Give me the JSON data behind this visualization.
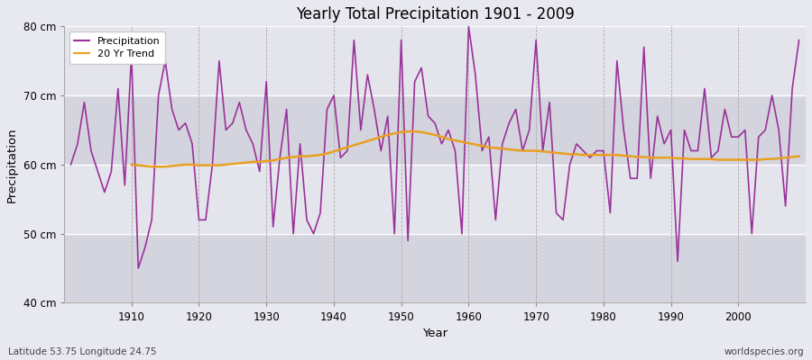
{
  "title": "Yearly Total Precipitation 1901 - 2009",
  "xlabel": "Year",
  "ylabel": "Precipitation",
  "bottom_left_label": "Latitude 53.75 Longitude 24.75",
  "bottom_right_label": "worldspecies.org",
  "precip_color": "#993399",
  "trend_color": "#e8a020",
  "background_color": "#e8e8f0",
  "inner_bg_color": "#dcdce8",
  "band_color_light": "#e4e4ec",
  "band_color_dark": "#d4d4de",
  "ylim": [
    40,
    80
  ],
  "yticks": [
    40,
    50,
    60,
    70,
    80
  ],
  "ytick_labels": [
    "40 cm",
    "50 cm",
    "60 cm",
    "70 cm",
    "80 cm"
  ],
  "xticks": [
    1910,
    1920,
    1930,
    1940,
    1950,
    1960,
    1970,
    1980,
    1990,
    2000
  ],
  "years": [
    1901,
    1902,
    1903,
    1904,
    1905,
    1906,
    1907,
    1908,
    1909,
    1910,
    1911,
    1912,
    1913,
    1914,
    1915,
    1916,
    1917,
    1918,
    1919,
    1920,
    1921,
    1922,
    1923,
    1924,
    1925,
    1926,
    1927,
    1928,
    1929,
    1930,
    1931,
    1932,
    1933,
    1934,
    1935,
    1936,
    1937,
    1938,
    1939,
    1940,
    1941,
    1942,
    1943,
    1944,
    1945,
    1946,
    1947,
    1948,
    1949,
    1950,
    1951,
    1952,
    1953,
    1954,
    1955,
    1956,
    1957,
    1958,
    1959,
    1960,
    1961,
    1962,
    1963,
    1964,
    1965,
    1966,
    1967,
    1968,
    1969,
    1970,
    1971,
    1972,
    1973,
    1974,
    1975,
    1976,
    1977,
    1978,
    1979,
    1980,
    1981,
    1982,
    1983,
    1984,
    1985,
    1986,
    1987,
    1988,
    1989,
    1990,
    1991,
    1992,
    1993,
    1994,
    1995,
    1996,
    1997,
    1998,
    1999,
    2000,
    2001,
    2002,
    2003,
    2004,
    2005,
    2006,
    2007,
    2008,
    2009
  ],
  "precip": [
    60,
    63,
    69,
    62,
    59,
    56,
    59,
    71,
    57,
    76,
    45,
    48,
    52,
    70,
    75,
    68,
    65,
    66,
    63,
    52,
    52,
    60,
    75,
    65,
    66,
    69,
    65,
    63,
    59,
    72,
    51,
    61,
    68,
    50,
    63,
    52,
    50,
    53,
    68,
    70,
    61,
    62,
    78,
    65,
    73,
    68,
    62,
    67,
    50,
    78,
    49,
    72,
    74,
    67,
    66,
    63,
    65,
    62,
    50,
    80,
    73,
    62,
    64,
    52,
    63,
    66,
    68,
    62,
    65,
    78,
    62,
    69,
    53,
    52,
    60,
    63,
    62,
    61,
    62,
    62,
    53,
    75,
    65,
    58,
    58,
    77,
    58,
    67,
    63,
    65,
    46,
    65,
    62,
    62,
    71,
    61,
    62,
    68,
    64,
    64,
    65,
    50,
    64,
    65,
    70,
    65,
    54,
    71,
    78
  ],
  "trend": [
    null,
    null,
    null,
    null,
    null,
    null,
    null,
    null,
    null,
    60,
    59.9,
    59.8,
    59.7,
    59.7,
    59.7,
    59.8,
    59.9,
    60.0,
    60.0,
    59.9,
    59.9,
    59.9,
    59.9,
    60.0,
    60.1,
    60.2,
    60.3,
    60.4,
    60.4,
    60.5,
    60.6,
    60.8,
    61.0,
    61.1,
    61.2,
    61.2,
    61.3,
    61.4,
    61.6,
    61.9,
    62.2,
    62.5,
    62.8,
    63.1,
    63.4,
    63.7,
    64.0,
    64.3,
    64.5,
    64.7,
    64.8,
    64.8,
    64.7,
    64.5,
    64.3,
    64.0,
    63.7,
    63.5,
    63.3,
    63.1,
    62.9,
    62.7,
    62.5,
    62.4,
    62.3,
    62.2,
    62.1,
    62.0,
    62.0,
    62.0,
    61.9,
    61.8,
    61.7,
    61.6,
    61.5,
    61.5,
    61.4,
    61.4,
    61.4,
    61.4,
    61.4,
    61.4,
    61.3,
    61.2,
    61.1,
    61.1,
    61.0,
    61.0,
    61.0,
    61.0,
    60.9,
    60.9,
    60.8,
    60.8,
    60.8,
    60.8,
    60.7,
    60.7,
    60.7,
    60.7,
    60.7,
    60.7,
    60.7,
    60.8,
    60.8,
    60.9,
    61.0,
    61.1,
    61.2
  ]
}
